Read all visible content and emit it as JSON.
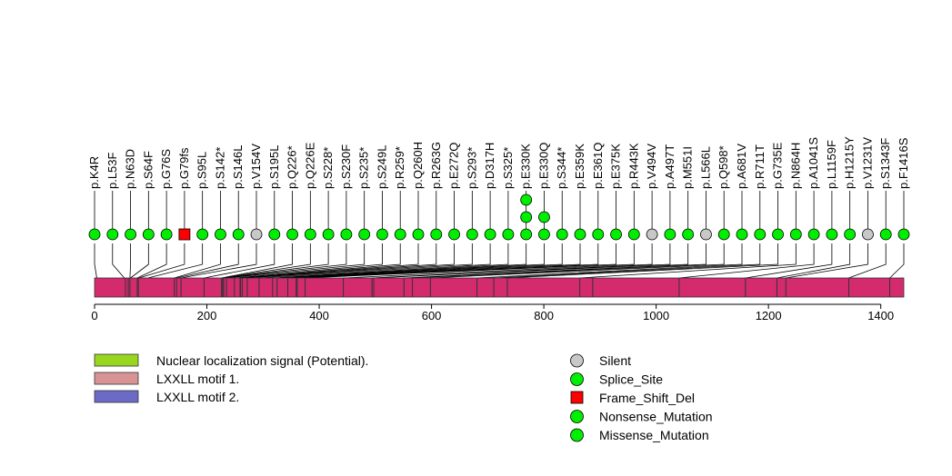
{
  "chart_data": {
    "type": "lollipop",
    "title": "",
    "xlabel": "",
    "ylabel": "",
    "protein_length": 1441,
    "xlim": [
      0,
      1441
    ],
    "x_ticks": [
      0,
      200,
      400,
      600,
      800,
      1000,
      1200,
      1400
    ],
    "protein_color": "#d42a6e",
    "domain_boundaries": [
      55,
      60,
      63,
      76,
      78,
      142,
      146,
      154,
      195,
      226,
      228,
      230,
      235,
      249,
      259,
      260,
      263,
      272,
      293,
      317,
      325,
      344,
      359,
      361,
      375,
      443,
      494,
      497,
      551,
      566,
      598,
      681,
      711,
      735,
      864,
      887,
      1041,
      1159,
      1215,
      1231,
      1343,
      1416
    ],
    "mutations": [
      {
        "label": "p.K4R",
        "position": 4,
        "type": "Missense_Mutation",
        "count": 1
      },
      {
        "label": "p.L53F",
        "position": 53,
        "type": "Missense_Mutation",
        "count": 1
      },
      {
        "label": "p.N63D",
        "position": 63,
        "type": "Missense_Mutation",
        "count": 1
      },
      {
        "label": "p.S64F",
        "position": 64,
        "type": "Missense_Mutation",
        "count": 1
      },
      {
        "label": "p.G76S",
        "position": 76,
        "type": "Missense_Mutation",
        "count": 1
      },
      {
        "label": "p.G79fs",
        "position": 79,
        "type": "Frame_Shift_Del",
        "count": 1
      },
      {
        "label": "p.S95L",
        "position": 95,
        "type": "Missense_Mutation",
        "count": 1
      },
      {
        "label": "p.S142*",
        "position": 142,
        "type": "Nonsense_Mutation",
        "count": 1
      },
      {
        "label": "p.S146L",
        "position": 146,
        "type": "Missense_Mutation",
        "count": 1
      },
      {
        "label": "p.V154V",
        "position": 154,
        "type": "Silent",
        "count": 1
      },
      {
        "label": "p.S195L",
        "position": 195,
        "type": "Missense_Mutation",
        "count": 1
      },
      {
        "label": "p.Q226*",
        "position": 226,
        "type": "Nonsense_Mutation",
        "count": 1
      },
      {
        "label": "p.Q226E",
        "position": 226,
        "type": "Missense_Mutation",
        "count": 1
      },
      {
        "label": "p.S228*",
        "position": 228,
        "type": "Nonsense_Mutation",
        "count": 1
      },
      {
        "label": "p.S230F",
        "position": 230,
        "type": "Missense_Mutation",
        "count": 1
      },
      {
        "label": "p.S235*",
        "position": 235,
        "type": "Nonsense_Mutation",
        "count": 1
      },
      {
        "label": "p.S249L",
        "position": 249,
        "type": "Missense_Mutation",
        "count": 1
      },
      {
        "label": "p.R259*",
        "position": 259,
        "type": "Nonsense_Mutation",
        "count": 1
      },
      {
        "label": "p.Q260H",
        "position": 260,
        "type": "Missense_Mutation",
        "count": 1
      },
      {
        "label": "p.R263G",
        "position": 263,
        "type": "Missense_Mutation",
        "count": 1
      },
      {
        "label": "p.E272Q",
        "position": 272,
        "type": "Missense_Mutation",
        "count": 1
      },
      {
        "label": "p.S293*",
        "position": 293,
        "type": "Nonsense_Mutation",
        "count": 1
      },
      {
        "label": "p.D317H",
        "position": 317,
        "type": "Missense_Mutation",
        "count": 1
      },
      {
        "label": "p.S325*",
        "position": 325,
        "type": "Nonsense_Mutation",
        "count": 1
      },
      {
        "label": "p.E330K",
        "position": 330,
        "type": "Missense_Mutation",
        "count": 3
      },
      {
        "label": "p.E330Q",
        "position": 330,
        "type": "Missense_Mutation",
        "count": 2
      },
      {
        "label": "p.S344*",
        "position": 344,
        "type": "Nonsense_Mutation",
        "count": 1
      },
      {
        "label": "p.E359K",
        "position": 359,
        "type": "Missense_Mutation",
        "count": 1
      },
      {
        "label": "p.E361Q",
        "position": 361,
        "type": "Missense_Mutation",
        "count": 1
      },
      {
        "label": "p.E375K",
        "position": 375,
        "type": "Missense_Mutation",
        "count": 1
      },
      {
        "label": "p.R443K",
        "position": 443,
        "type": "Missense_Mutation",
        "count": 1
      },
      {
        "label": "p.V494V",
        "position": 494,
        "type": "Silent",
        "count": 1
      },
      {
        "label": "p.A497T",
        "position": 497,
        "type": "Missense_Mutation",
        "count": 1
      },
      {
        "label": "p.M551I",
        "position": 551,
        "type": "Missense_Mutation",
        "count": 1
      },
      {
        "label": "p.L566L",
        "position": 566,
        "type": "Silent",
        "count": 1
      },
      {
        "label": "p.Q598*",
        "position": 598,
        "type": "Nonsense_Mutation",
        "count": 1
      },
      {
        "label": "p.A681V",
        "position": 681,
        "type": "Missense_Mutation",
        "count": 1
      },
      {
        "label": "p.R711T",
        "position": 711,
        "type": "Missense_Mutation",
        "count": 1
      },
      {
        "label": "p.G735E",
        "position": 735,
        "type": "Missense_Mutation",
        "count": 1
      },
      {
        "label": "p.N864H",
        "position": 864,
        "type": "Missense_Mutation",
        "count": 1
      },
      {
        "label": "p.A1041S",
        "position": 1041,
        "type": "Missense_Mutation",
        "count": 1
      },
      {
        "label": "p.L1159F",
        "position": 1159,
        "type": "Missense_Mutation",
        "count": 1
      },
      {
        "label": "p.H1215Y",
        "position": 1215,
        "type": "Missense_Mutation",
        "count": 1
      },
      {
        "label": "p.V1231V",
        "position": 1231,
        "type": "Silent",
        "count": 1
      },
      {
        "label": "p.S1343F",
        "position": 1343,
        "type": "Missense_Mutation",
        "count": 1
      },
      {
        "label": "p.F1416S",
        "position": 1416,
        "type": "Missense_Mutation",
        "count": 1
      }
    ],
    "domain_legend": [
      {
        "label": "Nuclear localization signal (Potential).",
        "color": "#99d620"
      },
      {
        "label": "LXXLL motif 1.",
        "color": "#d89494"
      },
      {
        "label": "LXXLL motif 2.",
        "color": "#6b6bc6"
      }
    ],
    "mutation_legend": [
      {
        "label": "Silent",
        "color": "#c8c8c8",
        "shape": "circle"
      },
      {
        "label": "Splice_Site",
        "color": "#00ee00",
        "shape": "circle"
      },
      {
        "label": "Frame_Shift_Del",
        "color": "#ff0000",
        "shape": "square"
      },
      {
        "label": "Nonsense_Mutation",
        "color": "#00ee00",
        "shape": "circle"
      },
      {
        "label": "Missense_Mutation",
        "color": "#00ee00",
        "shape": "circle"
      }
    ],
    "type_colors": {
      "Silent": "#c8c8c8",
      "Splice_Site": "#00ee00",
      "Frame_Shift_Del": "#ff0000",
      "Nonsense_Mutation": "#00ee00",
      "Missense_Mutation": "#00ee00"
    }
  }
}
